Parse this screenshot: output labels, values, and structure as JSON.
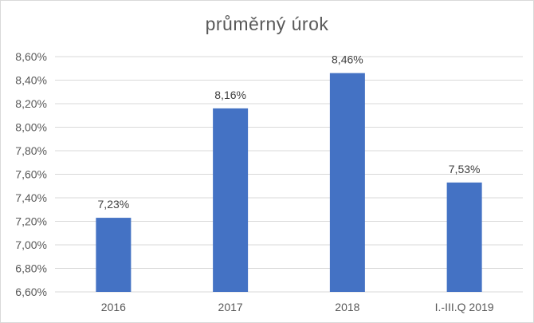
{
  "chart_data": {
    "type": "bar",
    "title": "průměrný úrok",
    "xlabel": "",
    "ylabel": "",
    "categories": [
      "2016",
      "2017",
      "2018",
      "I.-III.Q 2019"
    ],
    "values": [
      7.23,
      8.16,
      8.46,
      7.53
    ],
    "data_labels": [
      "7,23%",
      "8,16%",
      "8,46%",
      "7,53%"
    ],
    "ylim": [
      6.6,
      8.6
    ],
    "yticks": [
      6.6,
      6.8,
      7.0,
      7.2,
      7.4,
      7.6,
      7.8,
      8.0,
      8.2,
      8.4,
      8.6
    ],
    "ytick_labels": [
      "6,60%",
      "6,80%",
      "7,00%",
      "7,20%",
      "7,40%",
      "7,60%",
      "7,80%",
      "8,00%",
      "8,20%",
      "8,40%",
      "8,60%"
    ],
    "grid": true,
    "legend": "none",
    "bar_color": "#4472C4",
    "grid_color": "#d9d9d9"
  }
}
